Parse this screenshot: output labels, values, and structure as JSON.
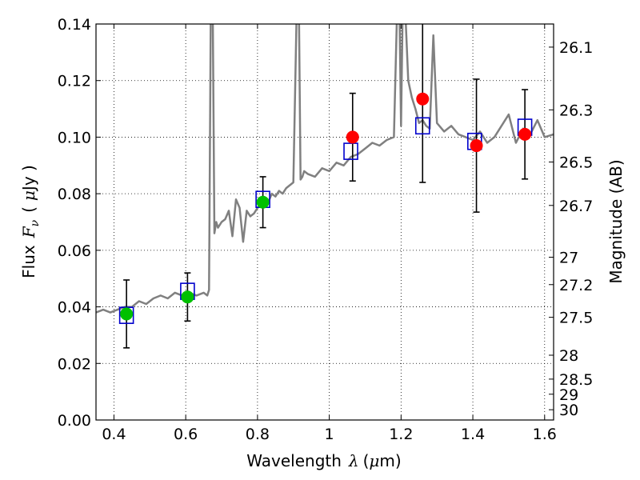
{
  "chart_data": {
    "type": "scatter",
    "xlabel_prefix": "Wavelength",
    "xlabel_symbol": "λ",
    "xlabel_unit_open": "(",
    "xlabel_unit_mu": "μ",
    "xlabel_unit_rest": "m)",
    "ylabel_prefix": "Flux",
    "ylabel_symbol": "F",
    "ylabel_sub": "ν",
    "ylabel_unit_open": "(",
    "ylabel_unit_mu": "μ",
    "ylabel_unit_rest": "Jy )",
    "y2label": "Magnitude (AB)",
    "xlim": [
      0.35,
      1.625
    ],
    "ylim": [
      0.0,
      0.14
    ],
    "x_ticks": [
      0.4,
      0.6,
      0.8,
      1.0,
      1.2,
      1.4,
      1.6
    ],
    "x_tick_labels": [
      "0.4",
      "0.6",
      "0.8",
      "1",
      "1.2",
      "1.4",
      "1.6"
    ],
    "y_ticks": [
      0.0,
      0.02,
      0.04,
      0.06,
      0.08,
      0.1,
      0.12,
      0.14
    ],
    "y_tick_labels": [
      "0.00",
      "0.02",
      "0.04",
      "0.06",
      "0.08",
      "0.10",
      "0.12",
      "0.14"
    ],
    "mag_ticks": [
      26.1,
      26.3,
      26.5,
      26.7,
      27,
      27.2,
      27.5,
      28,
      28.5,
      29,
      30
    ],
    "mag_tick_labels": [
      "26.1",
      "26.3",
      "26.5",
      "26.7",
      "27",
      "27.2",
      "27.5",
      "28",
      "28.5",
      "29",
      "30"
    ],
    "grid": true,
    "colors": {
      "spectrum": "#808080",
      "green_points": "#00c000",
      "red_points": "#ff0000",
      "model_boxes": "#0000cc",
      "error_bars": "#000000"
    },
    "series": [
      {
        "kind": "spectrum",
        "x": [
          0.35,
          0.37,
          0.39,
          0.41,
          0.43,
          0.45,
          0.47,
          0.49,
          0.51,
          0.53,
          0.55,
          0.57,
          0.59,
          0.61,
          0.63,
          0.65,
          0.66,
          0.665,
          0.67,
          0.675,
          0.68,
          0.685,
          0.69,
          0.7,
          0.71,
          0.72,
          0.73,
          0.74,
          0.75,
          0.76,
          0.77,
          0.78,
          0.79,
          0.8,
          0.81,
          0.82,
          0.83,
          0.84,
          0.85,
          0.86,
          0.87,
          0.88,
          0.89,
          0.9,
          0.91,
          0.915,
          0.92,
          0.925,
          0.93,
          0.94,
          0.96,
          0.98,
          1.0,
          1.02,
          1.04,
          1.06,
          1.08,
          1.1,
          1.12,
          1.14,
          1.16,
          1.18,
          1.19,
          1.195,
          1.2,
          1.205,
          1.21,
          1.22,
          1.23,
          1.24,
          1.25,
          1.26,
          1.27,
          1.28,
          1.29,
          1.3,
          1.32,
          1.34,
          1.36,
          1.38,
          1.4,
          1.42,
          1.44,
          1.46,
          1.48,
          1.5,
          1.52,
          1.54,
          1.56,
          1.58,
          1.6,
          1.625
        ],
        "y": [
          0.038,
          0.039,
          0.038,
          0.039,
          0.04,
          0.04,
          0.042,
          0.041,
          0.043,
          0.044,
          0.043,
          0.045,
          0.044,
          0.045,
          0.044,
          0.045,
          0.044,
          0.046,
          0.15,
          0.15,
          0.066,
          0.07,
          0.068,
          0.07,
          0.071,
          0.074,
          0.065,
          0.078,
          0.075,
          0.063,
          0.074,
          0.072,
          0.073,
          0.075,
          0.076,
          0.078,
          0.077,
          0.08,
          0.079,
          0.081,
          0.08,
          0.082,
          0.083,
          0.084,
          0.15,
          0.15,
          0.085,
          0.086,
          0.088,
          0.087,
          0.086,
          0.089,
          0.088,
          0.091,
          0.09,
          0.093,
          0.094,
          0.096,
          0.098,
          0.097,
          0.099,
          0.1,
          0.15,
          0.15,
          0.104,
          0.15,
          0.15,
          0.12,
          0.114,
          0.11,
          0.105,
          0.106,
          0.104,
          0.103,
          0.136,
          0.105,
          0.102,
          0.104,
          0.101,
          0.1,
          0.099,
          0.102,
          0.098,
          0.1,
          0.104,
          0.108,
          0.098,
          0.103,
          0.101,
          0.106,
          0.1,
          0.101
        ]
      },
      {
        "kind": "observed",
        "color": "green",
        "x": [
          0.435,
          0.605,
          0.815
        ],
        "y": [
          0.0375,
          0.0435,
          0.077
        ],
        "err": [
          0.012,
          0.0085,
          0.009
        ]
      },
      {
        "kind": "observed",
        "color": "red",
        "x": [
          1.065,
          1.26,
          1.41,
          1.545
        ],
        "y": [
          0.1,
          0.1135,
          0.097,
          0.101
        ],
        "err": [
          0.0155,
          0.0295,
          0.0235,
          0.0158
        ]
      },
      {
        "kind": "model",
        "x": [
          0.435,
          0.605,
          0.815,
          1.06,
          1.26,
          1.405,
          1.545
        ],
        "y": [
          0.037,
          0.0455,
          0.078,
          0.095,
          0.104,
          0.0985,
          0.1035
        ]
      }
    ]
  }
}
